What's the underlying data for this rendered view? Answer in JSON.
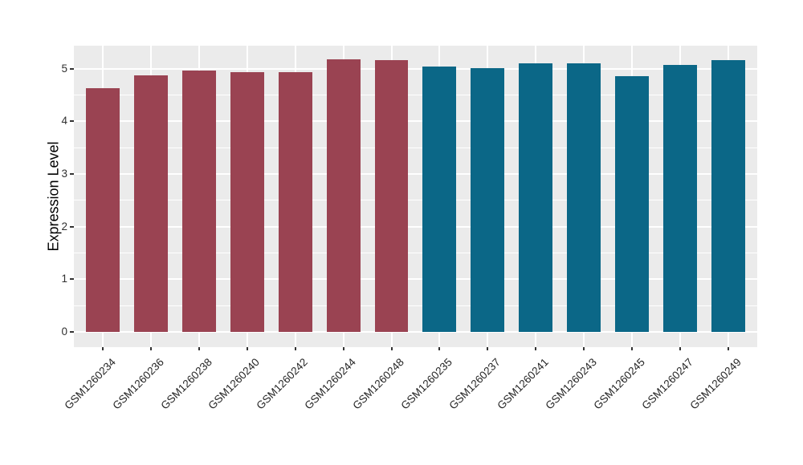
{
  "chart_data": {
    "type": "bar",
    "title": "",
    "xlabel": "",
    "ylabel": "Expression Level",
    "ylim": [
      -0.29,
      5.44
    ],
    "yticks": [
      0,
      1,
      2,
      3,
      4,
      5
    ],
    "y_minor_interval": 0.5,
    "grid": "on",
    "legend": "none",
    "panel_background": "#EBEBEB",
    "gridline_color": "#ffffff",
    "bar_width_fraction": 0.7,
    "groups": [
      {
        "name": "group-1",
        "color": "#9A4352"
      },
      {
        "name": "group-2",
        "color": "#0B6787"
      }
    ],
    "categories": [
      "GSM1260234",
      "GSM1260236",
      "GSM1260238",
      "GSM1260240",
      "GSM1260242",
      "GSM1260244",
      "GSM1260248",
      "GSM1260235",
      "GSM1260237",
      "GSM1260241",
      "GSM1260243",
      "GSM1260245",
      "GSM1260247",
      "GSM1260249"
    ],
    "bars": [
      {
        "label": "GSM1260234",
        "value": 4.63,
        "group": 0
      },
      {
        "label": "GSM1260236",
        "value": 4.88,
        "group": 0
      },
      {
        "label": "GSM1260238",
        "value": 4.97,
        "group": 0
      },
      {
        "label": "GSM1260240",
        "value": 4.94,
        "group": 0
      },
      {
        "label": "GSM1260242",
        "value": 4.94,
        "group": 0
      },
      {
        "label": "GSM1260244",
        "value": 5.18,
        "group": 0
      },
      {
        "label": "GSM1260248",
        "value": 5.16,
        "group": 0
      },
      {
        "label": "GSM1260235",
        "value": 5.05,
        "group": 1
      },
      {
        "label": "GSM1260237",
        "value": 5.02,
        "group": 1
      },
      {
        "label": "GSM1260241",
        "value": 5.1,
        "group": 1
      },
      {
        "label": "GSM1260243",
        "value": 5.1,
        "group": 1
      },
      {
        "label": "GSM1260245",
        "value": 4.86,
        "group": 1
      },
      {
        "label": "GSM1260247",
        "value": 5.08,
        "group": 1
      },
      {
        "label": "GSM1260249",
        "value": 5.17,
        "group": 1
      }
    ]
  }
}
